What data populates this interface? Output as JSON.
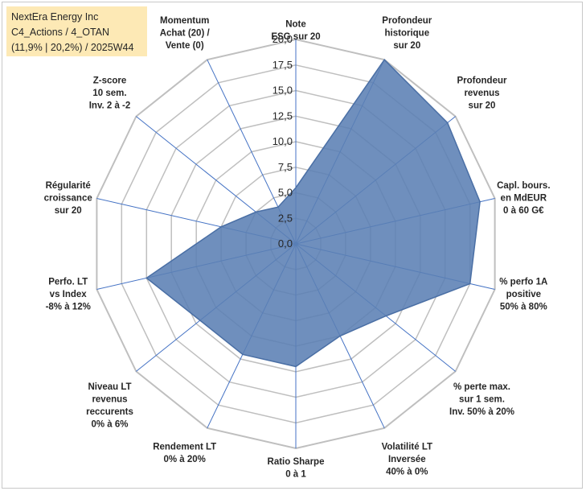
{
  "title_box": {
    "line1": "NextEra Energy Inc",
    "line2": "C4_Actions / 4_OTAN",
    "line3": "(11,9% | 20,2%) / 2025W44"
  },
  "colors": {
    "fill": "#5b80b4",
    "stroke": "#4a6fa5",
    "grid": "#bfbfbf",
    "axis": "#4472c4"
  },
  "chart_data": {
    "type": "radar",
    "title": "",
    "rmin": 0,
    "rmax": 20,
    "ticks": [
      "0,0",
      "2,5",
      "5,0",
      "7,5",
      "10,0",
      "12,5",
      "15,0",
      "17,5",
      "20,0"
    ],
    "axes": [
      {
        "label": [
          "Note",
          "ESG sur 20"
        ],
        "value": 5.5
      },
      {
        "label": [
          "Profondeur",
          "historique",
          "sur 20"
        ],
        "value": 20
      },
      {
        "label": [
          "Profondeur",
          "revenus",
          "sur 20"
        ],
        "value": 19
      },
      {
        "label": [
          "Capl. bours.",
          "en MdEUR",
          "0 à 60 G€"
        ],
        "value": 18.5
      },
      {
        "label": [
          "% perfo 1A",
          "positive",
          "50% à 80%"
        ],
        "value": 17.5
      },
      {
        "label": [
          "% perte max.",
          "sur 1 sem.",
          "Inv. 50% à 20%"
        ],
        "value": 11.3
      },
      {
        "label": [
          "Volatilité LT",
          "Inversée",
          "40% à 0%"
        ],
        "value": 10
      },
      {
        "label": [
          "Ratio Sharpe",
          "0 à 1"
        ],
        "value": 12
      },
      {
        "label": [
          "Rendement LT",
          "0% à 20%"
        ],
        "value": 12
      },
      {
        "label": [
          "Niveau LT",
          "revenus",
          "reccurents",
          "0% à 6%"
        ],
        "value": 12
      },
      {
        "label": [
          "Perfo. LT",
          "vs Index",
          "-8% à 12%"
        ],
        "value": 15
      },
      {
        "label": [
          "Régularité",
          "croissance",
          "sur 20"
        ],
        "value": 7.5
      },
      {
        "label": [
          "Z-score",
          "10 sem.",
          "Inv. 2 à -2"
        ],
        "value": 5
      },
      {
        "label": [
          "Momentum",
          "Achat (20) /",
          "Vente (0)"
        ],
        "value": 4
      }
    ]
  }
}
